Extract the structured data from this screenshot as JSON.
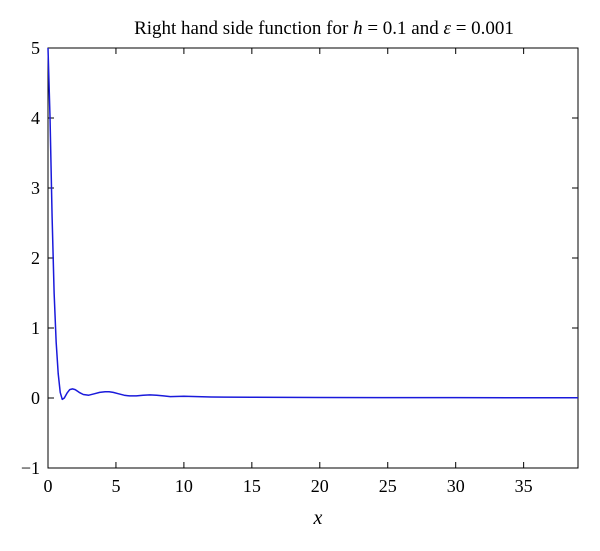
{
  "chart_data": {
    "type": "line",
    "title": {
      "prefix": "Right hand side function for ",
      "var1": "h",
      "mid1": " = 0.1 and ",
      "var2": "ε",
      "mid2": " = 0.001"
    },
    "xlabel": "x",
    "ylabel": "",
    "xlim": [
      0,
      39
    ],
    "ylim": [
      -1,
      5
    ],
    "xticks": [
      "0",
      "5",
      "10",
      "15",
      "20",
      "25",
      "30",
      "35"
    ],
    "yticks": [
      "−1",
      "0",
      "1",
      "2",
      "3",
      "4",
      "5"
    ],
    "grid": false,
    "legend": "none",
    "series": [
      {
        "color": "#1a1adb",
        "x": [
          0,
          0.15,
          0.3,
          0.45,
          0.6,
          0.75,
          0.9,
          1.05,
          1.2,
          1.4,
          1.6,
          1.8,
          2.0,
          2.3,
          2.6,
          3.0,
          3.4,
          3.8,
          4.2,
          4.5,
          4.8,
          5.2,
          5.6,
          6.0,
          6.5,
          7.0,
          7.5,
          8.0,
          8.5,
          9.0,
          10,
          11,
          12,
          13,
          15,
          20,
          25,
          30,
          35,
          39
        ],
        "y": [
          5.0,
          4.0,
          2.6,
          1.5,
          0.8,
          0.35,
          0.08,
          -0.02,
          0.0,
          0.07,
          0.12,
          0.13,
          0.12,
          0.08,
          0.05,
          0.04,
          0.06,
          0.08,
          0.09,
          0.09,
          0.08,
          0.06,
          0.04,
          0.03,
          0.03,
          0.04,
          0.045,
          0.04,
          0.03,
          0.02,
          0.025,
          0.02,
          0.015,
          0.012,
          0.01,
          0.008,
          0.006,
          0.005,
          0.004,
          0.004
        ]
      }
    ]
  }
}
